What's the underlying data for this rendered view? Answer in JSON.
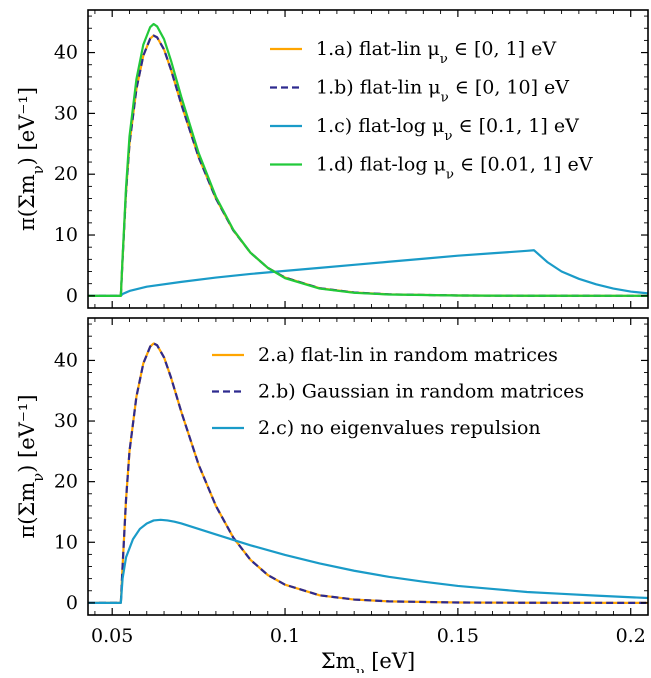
{
  "chart_data": [
    {
      "type": "line",
      "xlabel": "",
      "ylabel": "π(Σm_ν) [eV⁻¹]",
      "xlim": [
        0.043,
        0.205
      ],
      "ylim": [
        -2,
        47
      ],
      "x_ticks": [],
      "y_ticks": [
        0,
        10,
        20,
        30,
        40
      ],
      "grid": false,
      "legend_position": "top-right",
      "series": [
        {
          "name": "1.a) flat-lin μ_ν ∈ [0, 1] eV",
          "color": "#ffa500",
          "dash": "solid",
          "width": 2.2,
          "x": [
            0.043,
            0.0525,
            0.053,
            0.054,
            0.055,
            0.057,
            0.059,
            0.061,
            0.062,
            0.063,
            0.065,
            0.067,
            0.07,
            0.075,
            0.08,
            0.085,
            0.09,
            0.095,
            0.1,
            0.11,
            0.12,
            0.13,
            0.15,
            0.17,
            0.205
          ],
          "y": [
            0,
            0,
            6,
            17,
            25,
            34,
            39.5,
            42.3,
            42.8,
            42.5,
            40.5,
            37.2,
            31.5,
            22.8,
            16,
            10.8,
            7.1,
            4.6,
            3,
            1.25,
            0.55,
            0.25,
            0.06,
            0.02,
            0
          ]
        },
        {
          "name": "1.b) flat-lin μ_ν ∈ [0, 10] eV",
          "color": "#2e2a8f",
          "dash": "7,4",
          "width": 2.2,
          "x": [
            0.043,
            0.0525,
            0.053,
            0.054,
            0.055,
            0.057,
            0.059,
            0.061,
            0.062,
            0.063,
            0.065,
            0.067,
            0.07,
            0.075,
            0.08,
            0.085,
            0.09,
            0.095,
            0.1,
            0.11,
            0.12,
            0.13,
            0.15,
            0.17,
            0.205
          ],
          "y": [
            0,
            0,
            6,
            17,
            25,
            34,
            39.5,
            42.3,
            42.8,
            42.5,
            40.5,
            37.2,
            31.5,
            22.8,
            16,
            10.8,
            7.1,
            4.6,
            3,
            1.25,
            0.55,
            0.25,
            0.06,
            0.02,
            0
          ]
        },
        {
          "name": "1.c) flat-log μ_ν ∈ [0.1, 1] eV",
          "color": "#1a9bc8",
          "dash": "solid",
          "width": 2.2,
          "x": [
            0.043,
            0.0525,
            0.053,
            0.055,
            0.06,
            0.07,
            0.08,
            0.09,
            0.1,
            0.11,
            0.12,
            0.13,
            0.14,
            0.15,
            0.16,
            0.17,
            0.172,
            0.176,
            0.18,
            0.185,
            0.19,
            0.195,
            0.2,
            0.205
          ],
          "y": [
            0,
            0,
            0.3,
            0.8,
            1.5,
            2.3,
            3,
            3.6,
            4.1,
            4.6,
            5.1,
            5.6,
            6.1,
            6.6,
            7,
            7.4,
            7.5,
            5.5,
            4,
            2.8,
            1.9,
            1.2,
            0.7,
            0.4
          ]
        },
        {
          "name": "1.d) flat-log μ_ν ∈ [0.01, 1] eV",
          "color": "#22c93a",
          "dash": "solid",
          "width": 2.2,
          "x": [
            0.043,
            0.0525,
            0.053,
            0.054,
            0.055,
            0.057,
            0.059,
            0.061,
            0.062,
            0.063,
            0.065,
            0.067,
            0.07,
            0.075,
            0.08,
            0.085,
            0.09,
            0.095,
            0.1,
            0.11,
            0.12,
            0.13,
            0.15,
            0.17,
            0.205
          ],
          "y": [
            0,
            0,
            6.3,
            17.8,
            26.2,
            35.6,
            41.3,
            44.2,
            44.7,
            44.3,
            42.2,
            38.7,
            32.7,
            23.5,
            16.3,
            10.9,
            7.1,
            4.6,
            2.9,
            1.2,
            0.5,
            0.22,
            0.05,
            0.01,
            0
          ]
        }
      ]
    },
    {
      "type": "line",
      "xlabel": "Σm_ν [eV]",
      "ylabel": "π(Σm_ν) [eV⁻¹]",
      "xlim": [
        0.043,
        0.205
      ],
      "ylim": [
        -2,
        47
      ],
      "x_ticks": [
        0.05,
        0.1,
        0.15,
        0.2
      ],
      "x_tick_labels": [
        "0.05",
        "0.1",
        "0.15",
        "0.2"
      ],
      "y_ticks": [
        0,
        10,
        20,
        30,
        40
      ],
      "grid": false,
      "legend_position": "top-right",
      "series": [
        {
          "name": "2.a) flat-lin in random matrices",
          "color": "#ffa500",
          "dash": "solid",
          "width": 2.2,
          "x": [
            0.043,
            0.0525,
            0.053,
            0.054,
            0.055,
            0.057,
            0.059,
            0.061,
            0.062,
            0.063,
            0.065,
            0.067,
            0.07,
            0.075,
            0.08,
            0.085,
            0.09,
            0.095,
            0.1,
            0.11,
            0.12,
            0.13,
            0.15,
            0.17,
            0.205
          ],
          "y": [
            0,
            0,
            6,
            17,
            25,
            34,
            39.5,
            42.3,
            42.8,
            42.5,
            40.5,
            37.2,
            31.5,
            22.8,
            16,
            10.8,
            7.1,
            4.6,
            3,
            1.25,
            0.55,
            0.25,
            0.06,
            0.02,
            0
          ]
        },
        {
          "name": "2.b) Gaussian in random matrices",
          "color": "#2e2a8f",
          "dash": "7,4",
          "width": 2.2,
          "x": [
            0.043,
            0.0525,
            0.053,
            0.054,
            0.055,
            0.057,
            0.059,
            0.061,
            0.062,
            0.063,
            0.065,
            0.067,
            0.07,
            0.075,
            0.08,
            0.085,
            0.09,
            0.095,
            0.1,
            0.11,
            0.12,
            0.13,
            0.15,
            0.17,
            0.205
          ],
          "y": [
            0,
            0,
            6,
            17,
            25,
            34,
            39.5,
            42.3,
            42.8,
            42.5,
            40.5,
            37.2,
            31.5,
            22.8,
            16,
            10.8,
            7.1,
            4.6,
            3,
            1.25,
            0.55,
            0.25,
            0.06,
            0.02,
            0
          ]
        },
        {
          "name": "2.c) no eigenvalues repulsion",
          "color": "#1a9bc8",
          "dash": "solid",
          "width": 2.2,
          "x": [
            0.043,
            0.0525,
            0.053,
            0.054,
            0.056,
            0.058,
            0.06,
            0.062,
            0.064,
            0.066,
            0.068,
            0.07,
            0.075,
            0.08,
            0.09,
            0.1,
            0.11,
            0.12,
            0.13,
            0.14,
            0.15,
            0.16,
            0.17,
            0.18,
            0.19,
            0.205
          ],
          "y": [
            0,
            0,
            4,
            7.5,
            10.5,
            12.2,
            13.1,
            13.6,
            13.7,
            13.6,
            13.4,
            13.1,
            12.2,
            11.3,
            9.5,
            7.9,
            6.5,
            5.3,
            4.3,
            3.5,
            2.8,
            2.3,
            1.8,
            1.5,
            1.2,
            0.8
          ]
        }
      ]
    }
  ]
}
